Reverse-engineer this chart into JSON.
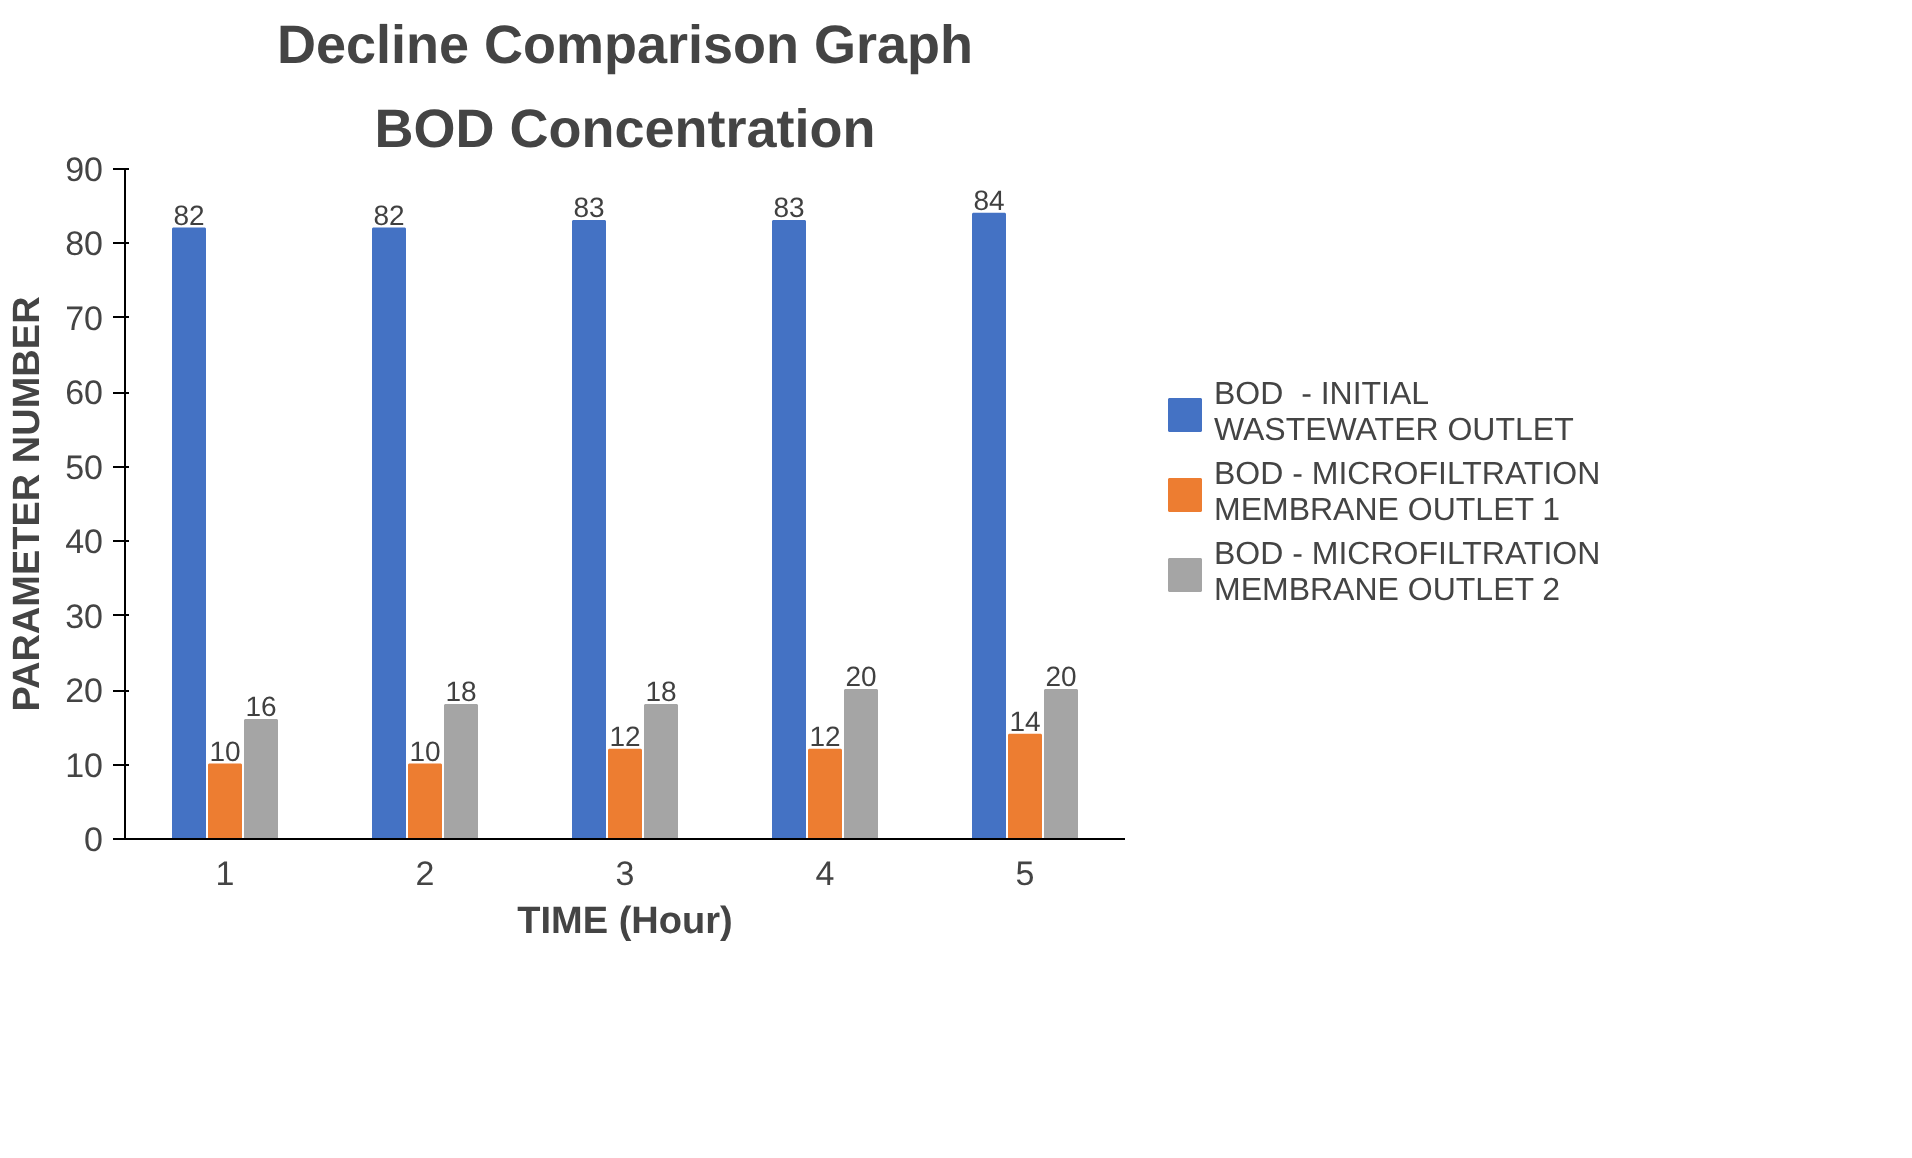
{
  "chart_data": {
    "type": "bar",
    "title": "Decline Comparison Graph",
    "subtitle": "BOD Concentration",
    "xlabel": "TIME (Hour)",
    "ylabel": "PARAMETER NUMBER",
    "categories": [
      "1",
      "2",
      "3",
      "4",
      "5"
    ],
    "series": [
      {
        "name": "BOD  - INITIAL WASTEWATER OUTLET",
        "color": "#4472c4",
        "values": [
          82,
          82,
          83,
          83,
          84
        ]
      },
      {
        "name": "BOD - MICROFILTRATION MEMBRANE OUTLET 1",
        "color": "#ed7d31",
        "values": [
          10,
          10,
          12,
          12,
          14
        ]
      },
      {
        "name": "BOD - MICROFILTRATION MEMBRANE OUTLET 2",
        "color": "#a5a5a5",
        "values": [
          16,
          18,
          18,
          20,
          20
        ]
      }
    ],
    "ylim": [
      0,
      90
    ],
    "yticks": [
      0,
      10,
      20,
      30,
      40,
      50,
      60,
      70,
      80,
      90
    ],
    "grid": false,
    "legend": "right",
    "data_labels": true
  }
}
